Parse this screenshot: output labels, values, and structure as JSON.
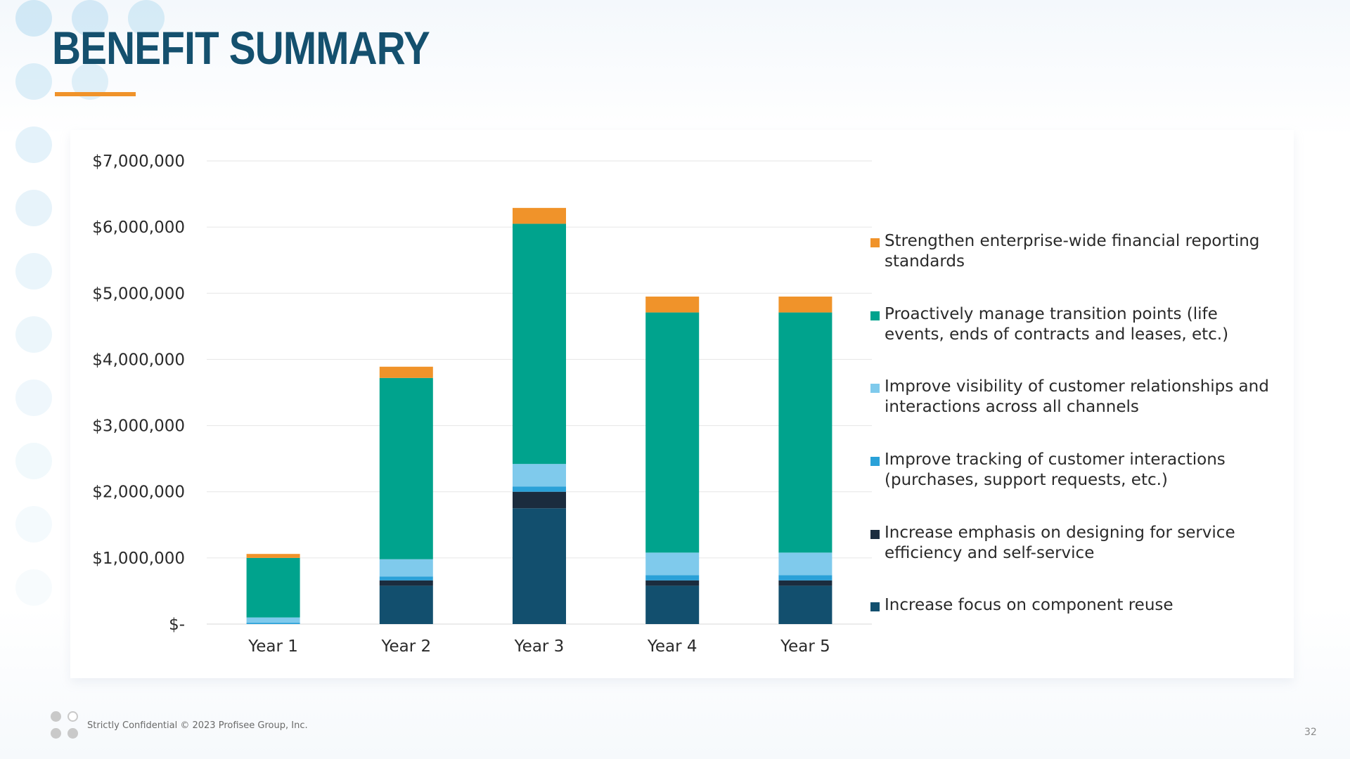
{
  "slide": {
    "title": "BENEFIT SUMMARY",
    "footer_text": "Strictly Confidential  © 2023 Profisee Group, Inc.",
    "page_number": "32",
    "colors": {
      "title": "#14506e",
      "accent": "#f0932a"
    }
  },
  "chart_data": {
    "type": "bar",
    "stacked": true,
    "title": "",
    "xlabel": "",
    "ylabel": "",
    "categories": [
      "Year 1",
      "Year 2",
      "Year 3",
      "Year 4",
      "Year 5"
    ],
    "ylim": [
      0,
      7000000
    ],
    "yticks": [
      0,
      1000000,
      2000000,
      3000000,
      4000000,
      5000000,
      6000000,
      7000000
    ],
    "ytick_labels": [
      "$-",
      "$1,000,000",
      "$2,000,000",
      "$3,000,000",
      "$4,000,000",
      "$5,000,000",
      "$6,000,000",
      "$7,000,000"
    ],
    "grid": true,
    "legend_position": "right",
    "series": [
      {
        "name": "Increase focus on component reuse",
        "color": "#124f6e",
        "values": [
          0,
          580000,
          1750000,
          580000,
          580000
        ]
      },
      {
        "name": "Increase emphasis on designing for service efficiency and self-service",
        "color": "#1b2c3e",
        "values": [
          0,
          80000,
          250000,
          80000,
          80000
        ]
      },
      {
        "name": "Improve tracking of customer interactions (purchases, support requests, etc.)",
        "color": "#2aa1d8",
        "values": [
          20000,
          60000,
          80000,
          80000,
          80000
        ]
      },
      {
        "name": "Improve visibility of customer relationships and interactions across all channels",
        "color": "#7fcaec",
        "values": [
          80000,
          260000,
          340000,
          340000,
          340000
        ]
      },
      {
        "name": "Proactively manage transition points (life events, ends of contracts and leases, etc.)",
        "color": "#00a38d",
        "values": [
          900000,
          2740000,
          3630000,
          3630000,
          3630000
        ]
      },
      {
        "name": "Strengthen enterprise-wide financial reporting standards",
        "color": "#f0932a",
        "values": [
          60000,
          170000,
          240000,
          240000,
          240000
        ]
      }
    ],
    "legend_order": [
      5,
      4,
      3,
      2,
      1,
      0
    ]
  }
}
